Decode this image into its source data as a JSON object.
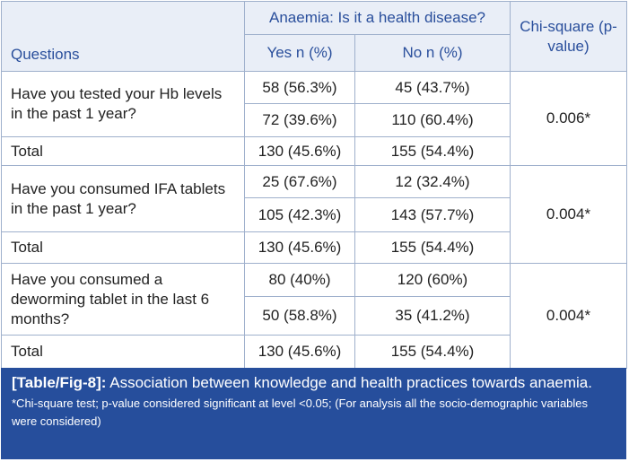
{
  "header": {
    "questions": "Questions",
    "group": "Anaemia: Is it a health disease?",
    "yes": "Yes n (%)",
    "no": "No n (%)",
    "chi": "Chi-square (p-value)"
  },
  "rows": [
    {
      "question": "Have you tested your Hb levels in the past 1 year?",
      "sub": [
        [
          "58 (56.3%)",
          "45 (43.7%)"
        ],
        [
          "72 (39.6%)",
          "110 (60.4%)"
        ]
      ],
      "p": "0.006*",
      "total_label": "Total",
      "total": [
        "130 (45.6%)",
        "155 (54.4%)"
      ]
    },
    {
      "question": "Have you consumed IFA tablets in the past 1 year?",
      "sub": [
        [
          "25 (67.6%)",
          "12 (32.4%)"
        ],
        [
          "105 (42.3%)",
          "143 (57.7%)"
        ]
      ],
      "p": "0.004*",
      "total_label": "Total",
      "total": [
        "130 (45.6%)",
        "155 (54.4%)"
      ]
    },
    {
      "question": "Have you consumed a deworming tablet in the last 6 months?",
      "sub": [
        [
          "80 (40%)",
          "120 (60%)"
        ],
        [
          "50 (58.8%)",
          "35 (41.2%)"
        ]
      ],
      "p": "0.004*",
      "total_label": "Total",
      "total": [
        "130 (45.6%)",
        "155 (54.4%)"
      ]
    }
  ],
  "caption": {
    "label": "[Table/Fig-8]:",
    "text": "Association between knowledge and health practices towards anaemia.",
    "note": "*Chi-square test; p-value considered significant at level <0.05; (For analysis all the socio-demographic variables were considered)"
  }
}
